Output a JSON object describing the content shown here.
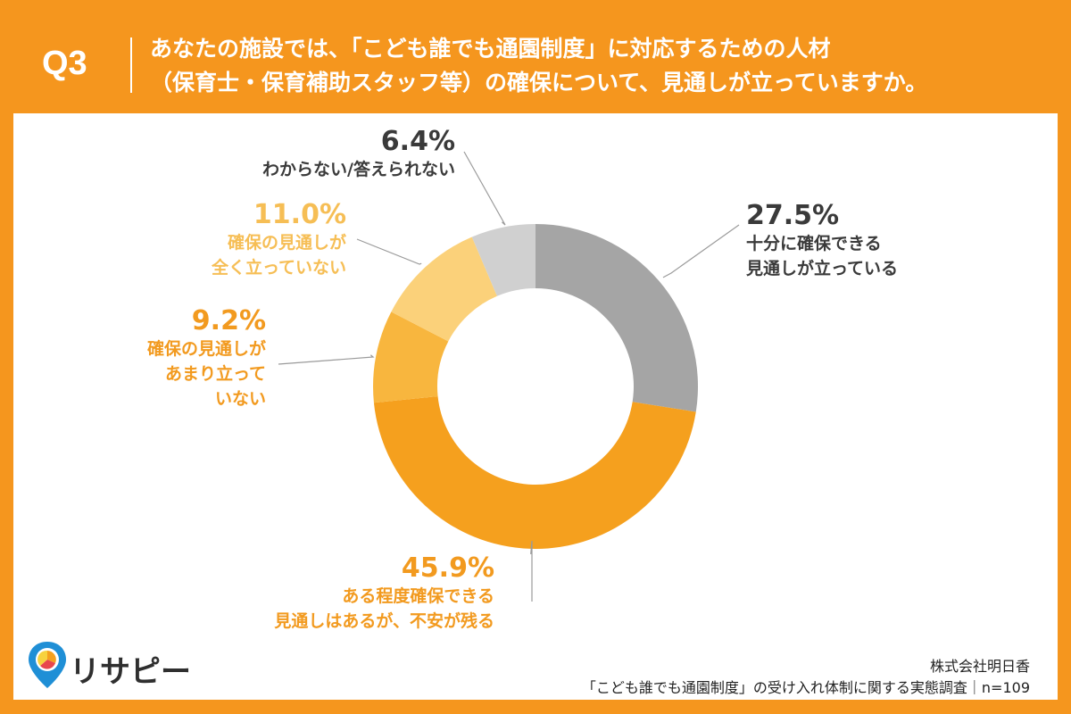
{
  "header": {
    "qnum": "Q3",
    "line1": "あなたの施設では、「こども誰でも通園制度」に対応するための人材",
    "line2": "（保育士・保育補助スタッフ等）の確保について、見通しが立っていますか。"
  },
  "colors": {
    "background": "#F5961E",
    "panel": "#FFFFFF",
    "text_dark": "#3A3A3A",
    "text_orange": "#F29A1F",
    "text_light_orange": "#F6BE55"
  },
  "chart_data": {
    "type": "pie",
    "style": "donut",
    "start_angle_deg": 0,
    "direction": "clockwise",
    "slices": [
      {
        "value": 27.5,
        "pct": "27.5%",
        "label_lines": [
          "十分に確保できる",
          "見通しが立っている"
        ],
        "color": "#A5A5A5"
      },
      {
        "value": 45.9,
        "pct": "45.9%",
        "label_lines": [
          "ある程度確保できる",
          "見通しはあるが、不安が残る"
        ],
        "color": "#F5A01E"
      },
      {
        "value": 9.2,
        "pct": "9.2%",
        "label_lines": [
          "確保の見通しが",
          "あまり立って",
          "いない"
        ],
        "color": "#F8B63E"
      },
      {
        "value": 11.0,
        "pct": "11.0%",
        "label_lines": [
          "確保の見通しが",
          "全く立っていない"
        ],
        "color": "#FBD17A"
      },
      {
        "value": 6.4,
        "pct": "6.4%",
        "label_lines": [
          "わからない/答えられない"
        ],
        "color": "#D0D0D0"
      }
    ]
  },
  "footer": {
    "logo_text": "リサピー",
    "logo_icon": "location-pin-pie-icon",
    "company": "株式会社明日香",
    "survey": "「こども誰でも通園制度」の受け入れ体制に関する実態調査｜n=109"
  }
}
